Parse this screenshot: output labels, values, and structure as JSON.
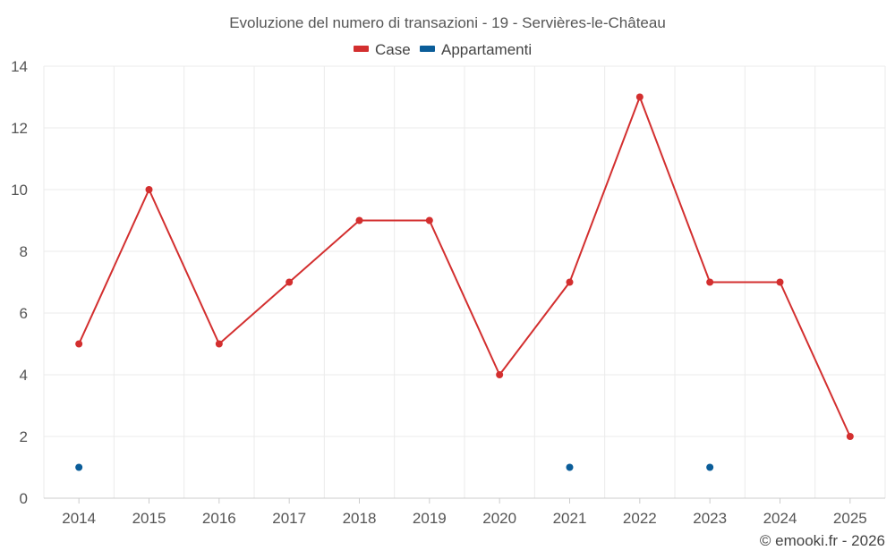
{
  "chart_data": {
    "type": "line",
    "title": "Evoluzione del numero di transazioni - 19 - Servières-le-Château",
    "categories": [
      "2014",
      "2015",
      "2016",
      "2017",
      "2018",
      "2019",
      "2020",
      "2021",
      "2022",
      "2023",
      "2024",
      "2025"
    ],
    "ylim": [
      0,
      14
    ],
    "yticks": [
      0,
      2,
      4,
      6,
      8,
      10,
      12,
      14
    ],
    "grid": true,
    "legend_position": "top-center",
    "series": [
      {
        "name": "Case",
        "color": "#d32f2f",
        "mode": "line+markers",
        "values": [
          5,
          10,
          5,
          7,
          9,
          9,
          4,
          7,
          13,
          7,
          7,
          2
        ]
      },
      {
        "name": "Appartamenti",
        "color": "#0b5d99",
        "mode": "markers",
        "values": [
          1,
          null,
          null,
          null,
          null,
          null,
          null,
          1,
          null,
          1,
          null,
          null
        ]
      }
    ]
  },
  "credit": "© emooki.fr - 2026"
}
